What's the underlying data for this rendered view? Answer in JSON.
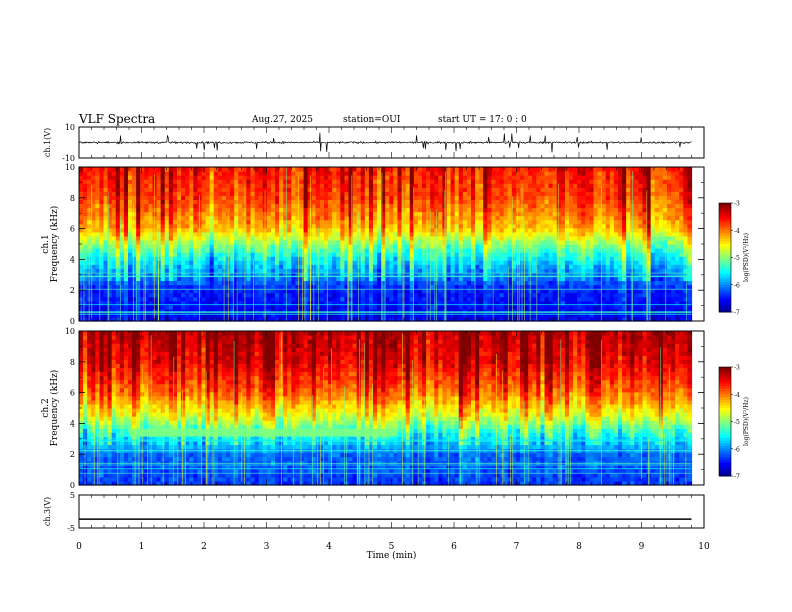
{
  "header": {
    "title": "VLF Spectra",
    "date": "Aug.27, 2025",
    "station": "station=OUI",
    "start_ut": "start  UT =   17: 0  : 0"
  },
  "chart_data": [
    {
      "type": "line",
      "ylabel": "ch.1(V)",
      "xlim": [
        0,
        10
      ],
      "ylim": [
        -10,
        10
      ],
      "yticks": [
        "10",
        "-10"
      ],
      "series": [
        {
          "color": "#000000"
        }
      ],
      "description_of_values": "noisy waveform centered near 0 V with spikes up to about ±5 V"
    },
    {
      "type": "heatmap",
      "ylabel_line1": "ch.1",
      "ylabel_line2": "Frequency  (kHz)",
      "xlim": [
        0,
        10
      ],
      "ylim": [
        0,
        10
      ],
      "yticks": [
        "0",
        "2",
        "4",
        "6",
        "8",
        "10"
      ],
      "colorbar": {
        "label": "log(PSD)(V²/Hz)",
        "ticks": [
          "-3",
          "-4",
          "-5",
          "-6",
          "-7"
        ],
        "range": [
          -7,
          -3
        ]
      },
      "levels_by_freq_khz": [
        [
          0,
          -6.6
        ],
        [
          2,
          -6.4
        ],
        [
          4,
          -5.6
        ],
        [
          5,
          -5.0
        ],
        [
          6,
          -4.3
        ],
        [
          8,
          -3.8
        ],
        [
          10,
          -3.6
        ]
      ]
    },
    {
      "type": "heatmap",
      "ylabel_line1": "ch.2",
      "ylabel_line2": "Frequency  (kHz)",
      "xlim": [
        0,
        10
      ],
      "ylim": [
        0,
        10
      ],
      "yticks": [
        "0",
        "2",
        "4",
        "6",
        "8",
        "10"
      ],
      "colorbar": {
        "label": "log(PSD)(V²/Hz)",
        "ticks": [
          "-3",
          "-4",
          "-5",
          "-6",
          "-7"
        ],
        "range": [
          -7,
          -3
        ]
      },
      "levels_by_freq_khz": [
        [
          0,
          -6.3
        ],
        [
          2,
          -6.1
        ],
        [
          3.5,
          -5.3
        ],
        [
          4.5,
          -4.6
        ],
        [
          6,
          -3.9
        ],
        [
          8,
          -3.4
        ],
        [
          10,
          -3.2
        ]
      ],
      "narrowband_line": {
        "freq_khz": 3.4,
        "time_min": [
          0.8,
          5.1
        ]
      }
    },
    {
      "type": "line",
      "ylabel": "ch.3(V)",
      "xlim": [
        0,
        10
      ],
      "ylim": [
        -5,
        5
      ],
      "yticks": [
        "5",
        "-5"
      ],
      "series": [
        {
          "color": "#000000",
          "x": [
            0,
            9.8
          ],
          "y": [
            -2.3,
            -2.3
          ]
        }
      ]
    }
  ],
  "xaxis": {
    "label": "Time  (min)",
    "ticks": [
      "0",
      "1",
      "2",
      "3",
      "4",
      "5",
      "6",
      "7",
      "8",
      "9",
      "10"
    ]
  }
}
